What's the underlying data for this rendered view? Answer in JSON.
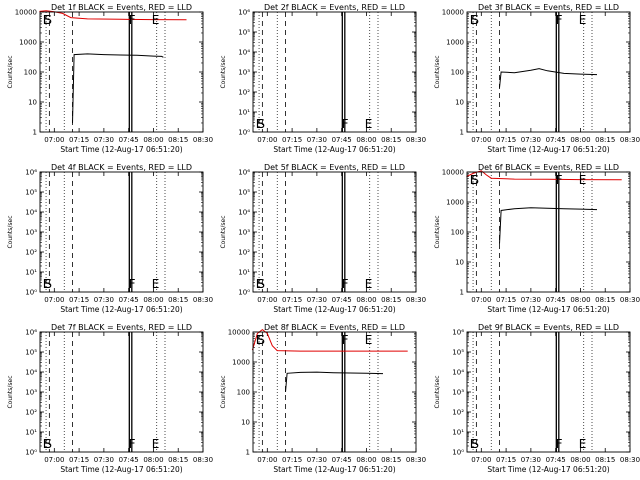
{
  "chart_data": [
    {
      "type": "line",
      "title": "Det 1f BLACK = Events, RED = LLD",
      "xlabel": "Start Time (12-Aug-17 06:51:20)",
      "ylabel": "Counts/sec",
      "yscale": "log",
      "ylim": [
        1,
        10000
      ],
      "xlim": [
        "06:51:20",
        "08:30:00"
      ],
      "x_ticks": [
        "07:00",
        "07:15",
        "07:30",
        "07:45",
        "08:00",
        "08:15",
        "08:30"
      ],
      "y_ticks": [
        "1",
        "10",
        "100",
        "1000",
        "10000"
      ],
      "markers": [
        {
          "label": "E",
          "time": "06:53"
        },
        {
          "label": "S",
          "time": "06:54"
        },
        {
          "label": "F",
          "time": "07:45"
        },
        {
          "label": "E",
          "time": "07:59"
        }
      ],
      "series": [
        {
          "color": "#000000",
          "points": [
            [
              "07:11",
              2
            ],
            [
              "07:12",
              380
            ],
            [
              "07:20",
              400
            ],
            [
              "07:30",
              380
            ],
            [
              "07:40",
              370
            ],
            [
              "07:50",
              360
            ],
            [
              "08:00",
              340
            ],
            [
              "08:05",
              330
            ],
            [
              "08:06",
              310
            ]
          ]
        },
        {
          "color": "#e00000",
          "points": [
            [
              "06:51",
              10500
            ],
            [
              "06:55",
              11000
            ],
            [
              "07:00",
              10200
            ],
            [
              "07:05",
              9000
            ],
            [
              "07:10",
              6500
            ],
            [
              "07:20",
              5900
            ],
            [
              "07:40",
              5700
            ],
            [
              "08:00",
              5600
            ],
            [
              "08:20",
              5500
            ]
          ]
        }
      ]
    },
    {
      "type": "line",
      "title": "Det 2f BLACK = Events, RED = LLD",
      "xlabel": "Start Time (12-Aug-17 06:51:20)",
      "ylabel": "Counts/sec",
      "yscale": "log",
      "ylim": [
        1,
        1000000
      ],
      "xlim": [
        "06:51:20",
        "08:30:00"
      ],
      "x_ticks": [
        "07:00",
        "07:15",
        "07:30",
        "07:45",
        "08:00",
        "08:15",
        "08:30"
      ],
      "y_ticks": [
        "10⁰",
        "10¹",
        "10²",
        "10³",
        "10⁴",
        "10⁵",
        "10⁶"
      ],
      "markers": [
        {
          "label": "E",
          "time": "06:53"
        },
        {
          "label": "S",
          "time": "06:54"
        },
        {
          "label": "F",
          "time": "07:45"
        },
        {
          "label": "E",
          "time": "07:59"
        }
      ],
      "series": []
    },
    {
      "type": "line",
      "title": "Det 3f BLACK = Events, RED = LLD",
      "xlabel": "Start Time (12-Aug-17 06:51:20)",
      "ylabel": "Counts/sec",
      "yscale": "log",
      "ylim": [
        1,
        10000
      ],
      "xlim": [
        "06:51:20",
        "08:30:00"
      ],
      "x_ticks": [
        "07:00",
        "07:15",
        "07:30",
        "07:45",
        "08:00",
        "08:15",
        "08:30"
      ],
      "y_ticks": [
        "1",
        "10",
        "100",
        "1000",
        "10000"
      ],
      "markers": [
        {
          "label": "E",
          "time": "06:53"
        },
        {
          "label": "S",
          "time": "06:54"
        },
        {
          "label": "F",
          "time": "07:45"
        },
        {
          "label": "E",
          "time": "07:59"
        }
      ],
      "series": [
        {
          "color": "#000000",
          "points": [
            [
              "07:11",
              30
            ],
            [
              "07:12",
              100
            ],
            [
              "07:20",
              95
            ],
            [
              "07:30",
              115
            ],
            [
              "07:35",
              130
            ],
            [
              "07:40",
              110
            ],
            [
              "07:50",
              90
            ],
            [
              "08:00",
              85
            ],
            [
              "08:10",
              82
            ]
          ]
        }
      ]
    },
    {
      "type": "line",
      "title": "Det 4f BLACK = Events, RED = LLD",
      "xlabel": "Start Time (12-Aug-17 06:51:20)",
      "ylabel": "Counts/sec",
      "yscale": "log",
      "ylim": [
        1,
        1000000
      ],
      "xlim": [
        "06:51:20",
        "08:30:00"
      ],
      "x_ticks": [
        "07:00",
        "07:15",
        "07:30",
        "07:45",
        "08:00",
        "08:15",
        "08:30"
      ],
      "y_ticks": [
        "10⁰",
        "10¹",
        "10²",
        "10³",
        "10⁴",
        "10⁵",
        "10⁶"
      ],
      "markers": [
        {
          "label": "E",
          "time": "06:53"
        },
        {
          "label": "S",
          "time": "06:54"
        },
        {
          "label": "F",
          "time": "07:45"
        },
        {
          "label": "E",
          "time": "07:59"
        }
      ],
      "series": []
    },
    {
      "type": "line",
      "title": "Det 5f BLACK = Events, RED = LLD",
      "xlabel": "Start Time (12-Aug-17 06:51:20)",
      "ylabel": "Counts/sec",
      "yscale": "log",
      "ylim": [
        1,
        1000000
      ],
      "xlim": [
        "06:51:20",
        "08:30:00"
      ],
      "x_ticks": [
        "07:00",
        "07:15",
        "07:30",
        "07:45",
        "08:00",
        "08:15",
        "08:30"
      ],
      "y_ticks": [
        "10⁰",
        "10¹",
        "10²",
        "10³",
        "10⁴",
        "10⁵",
        "10⁶"
      ],
      "markers": [
        {
          "label": "E",
          "time": "06:53"
        },
        {
          "label": "S",
          "time": "06:54"
        },
        {
          "label": "F",
          "time": "07:45"
        },
        {
          "label": "E",
          "time": "07:59"
        }
      ],
      "series": []
    },
    {
      "type": "line",
      "title": "Det 6f BLACK = Events, RED = LLD",
      "xlabel": "Start Time (12-Aug-17 06:51:20)",
      "ylabel": "Counts/sec",
      "yscale": "log",
      "ylim": [
        1,
        10000
      ],
      "xlim": [
        "06:51:20",
        "08:30:00"
      ],
      "x_ticks": [
        "07:00",
        "07:15",
        "07:30",
        "07:45",
        "08:00",
        "08:15",
        "08:30"
      ],
      "y_ticks": [
        "1",
        "10",
        "100",
        "1000",
        "10000"
      ],
      "markers": [
        {
          "label": "E",
          "time": "06:53"
        },
        {
          "label": "S",
          "time": "06:54"
        },
        {
          "label": "F",
          "time": "07:45"
        },
        {
          "label": "E",
          "time": "07:59"
        }
      ],
      "series": [
        {
          "color": "#000000",
          "points": [
            [
              "07:11",
              40
            ],
            [
              "07:12",
              520
            ],
            [
              "07:20",
              600
            ],
            [
              "07:30",
              640
            ],
            [
              "07:40",
              620
            ],
            [
              "07:50",
              600
            ],
            [
              "08:00",
              580
            ],
            [
              "08:10",
              560
            ]
          ]
        },
        {
          "color": "#e00000",
          "points": [
            [
              "06:51",
              7000
            ],
            [
              "06:55",
              9000
            ],
            [
              "07:00",
              11000
            ],
            [
              "07:03",
              8000
            ],
            [
              "07:06",
              6200
            ],
            [
              "07:20",
              5800
            ],
            [
              "07:40",
              5700
            ],
            [
              "08:00",
              5600
            ],
            [
              "08:25",
              5500
            ]
          ]
        }
      ]
    },
    {
      "type": "line",
      "title": "Det 7f BLACK = Events, RED = LLD",
      "xlabel": "Start Time (12-Aug-17 06:51:20)",
      "ylabel": "Counts/sec",
      "yscale": "log",
      "ylim": [
        1,
        1000000
      ],
      "xlim": [
        "06:51:20",
        "08:30:00"
      ],
      "x_ticks": [
        "07:00",
        "07:15",
        "07:30",
        "07:45",
        "08:00",
        "08:15",
        "08:30"
      ],
      "y_ticks": [
        "10⁰",
        "10¹",
        "10²",
        "10³",
        "10⁴",
        "10⁵",
        "10⁶"
      ],
      "markers": [
        {
          "label": "E",
          "time": "06:53"
        },
        {
          "label": "S",
          "time": "06:54"
        },
        {
          "label": "F",
          "time": "07:45"
        },
        {
          "label": "E",
          "time": "07:59"
        }
      ],
      "series": []
    },
    {
      "type": "line",
      "title": "Det 8f BLACK = Events, RED = LLD",
      "xlabel": "Start Time (12-Aug-17 06:51:20)",
      "ylabel": "Counts/sec",
      "yscale": "log",
      "ylim": [
        1,
        10000
      ],
      "xlim": [
        "06:51:20",
        "08:30:00"
      ],
      "x_ticks": [
        "07:00",
        "07:15",
        "07:30",
        "07:45",
        "08:00",
        "08:15",
        "08:30"
      ],
      "y_ticks": [
        "1",
        "10",
        "100",
        "1000",
        "10000"
      ],
      "markers": [
        {
          "label": "E",
          "time": "06:53"
        },
        {
          "label": "S",
          "time": "06:54"
        },
        {
          "label": "F",
          "time": "07:45"
        },
        {
          "label": "E",
          "time": "07:59"
        }
      ],
      "series": [
        {
          "color": "#000000",
          "points": [
            [
              "07:11",
              100
            ],
            [
              "07:12",
              420
            ],
            [
              "07:20",
              450
            ],
            [
              "07:30",
              460
            ],
            [
              "07:40",
              440
            ],
            [
              "07:50",
              430
            ],
            [
              "08:00",
              420
            ],
            [
              "08:10",
              410
            ]
          ]
        },
        {
          "color": "#e00000",
          "points": [
            [
              "06:51",
              2500
            ],
            [
              "06:54",
              9000
            ],
            [
              "06:57",
              12000
            ],
            [
              "07:00",
              9000
            ],
            [
              "07:03",
              3500
            ],
            [
              "07:06",
              2400
            ],
            [
              "07:20",
              2300
            ],
            [
              "07:40",
              2300
            ],
            [
              "08:00",
              2300
            ],
            [
              "08:25",
              2300
            ]
          ]
        }
      ]
    },
    {
      "type": "line",
      "title": "Det 9f BLACK = Events, RED = LLD",
      "xlabel": "Start Time (12-Aug-17 06:51:20)",
      "ylabel": "Counts/sec",
      "yscale": "log",
      "ylim": [
        1,
        1000000
      ],
      "xlim": [
        "06:51:20",
        "08:30:00"
      ],
      "x_ticks": [
        "07:00",
        "07:15",
        "07:30",
        "07:45",
        "08:00",
        "08:15",
        "08:30"
      ],
      "y_ticks": [
        "10⁰",
        "10¹",
        "10²",
        "10³",
        "10⁴",
        "10⁵",
        "10⁶"
      ],
      "markers": [
        {
          "label": "E",
          "time": "06:53"
        },
        {
          "label": "S",
          "time": "06:54"
        },
        {
          "label": "F",
          "time": "07:45"
        },
        {
          "label": "E",
          "time": "07:59"
        }
      ],
      "series": []
    }
  ]
}
